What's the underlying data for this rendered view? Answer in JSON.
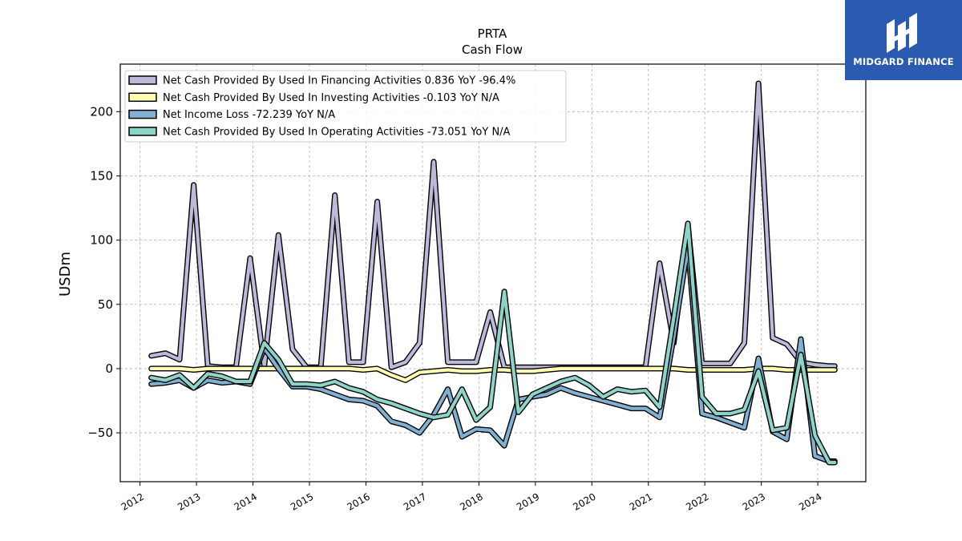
{
  "chart_data": {
    "type": "line",
    "title": "PRTA",
    "subtitle": "Cash Flow",
    "ylabel": "USDm",
    "xlabel": "",
    "xlim": [
      2011.65,
      2024.85
    ],
    "ylim": [
      -88,
      237
    ],
    "yticks": [
      -50,
      0,
      50,
      100,
      150,
      200
    ],
    "xticks": [
      "2012",
      "2013",
      "2014",
      "2015",
      "2016",
      "2017",
      "2018",
      "2019",
      "2020",
      "2021",
      "2022",
      "2023",
      "2024"
    ],
    "grid": true,
    "legend_position": "top-left",
    "x": [
      2012.2,
      2012.45,
      2012.7,
      2012.95,
      2013.2,
      2013.45,
      2013.7,
      2013.95,
      2014.2,
      2014.45,
      2014.7,
      2014.95,
      2015.2,
      2015.45,
      2015.7,
      2015.95,
      2016.2,
      2016.45,
      2016.7,
      2016.95,
      2017.2,
      2017.45,
      2017.7,
      2017.95,
      2018.2,
      2018.45,
      2018.7,
      2018.95,
      2019.2,
      2019.45,
      2019.7,
      2019.95,
      2020.2,
      2020.45,
      2020.7,
      2020.95,
      2021.2,
      2021.45,
      2021.7,
      2021.95,
      2022.2,
      2022.45,
      2022.7,
      2022.95,
      2023.2,
      2023.45,
      2023.7,
      2023.95,
      2024.2,
      2024.3
    ],
    "series": [
      {
        "name": "Net Cash Provided By Used In Financing Activities",
        "legend": "Net Cash Provided By Used In Financing Activities  0.836 YoY -96.4%",
        "color": "#bcbad9",
        "values": [
          10,
          12,
          7,
          143,
          2,
          1,
          1,
          86,
          2,
          104,
          15,
          1,
          1,
          135,
          5,
          5,
          130,
          1,
          5,
          20,
          161,
          5,
          5,
          5,
          44,
          1,
          1,
          1,
          1,
          1,
          1,
          1,
          1,
          1,
          1,
          1,
          82,
          20,
          112,
          4,
          4,
          4,
          20,
          222,
          24,
          19,
          5,
          3,
          2,
          2
        ]
      },
      {
        "name": "Net Cash Provided By Used In Investing Activities",
        "legend": "Net Cash Provided By Used In Investing Activities  -0.103 YoY N/A",
        "color": "#ffffb3",
        "values": [
          0,
          0,
          0,
          -1,
          0,
          0,
          0,
          0,
          0,
          0,
          0,
          0,
          0,
          0,
          0,
          -1,
          0,
          -5,
          -9,
          -3,
          -2,
          -1,
          -2,
          -2,
          -1,
          -1,
          -2,
          -2,
          -1,
          0,
          0,
          0,
          0,
          0,
          0,
          0,
          0,
          0,
          -1,
          -1,
          -1,
          -1,
          -1,
          0,
          0,
          -1,
          -1,
          -1,
          -1,
          -1
        ]
      },
      {
        "name": "Net Income Loss",
        "legend": "Net Income Loss  -72.239 YoY N/A",
        "color": "#80b1d3",
        "values": [
          -12,
          -11,
          -9,
          -15,
          -9,
          -11,
          -10,
          -12,
          16,
          0,
          -14,
          -14,
          -16,
          -20,
          -24,
          -25,
          -29,
          -41,
          -44,
          -50,
          -36,
          -16,
          -53,
          -47,
          -48,
          -60,
          -24,
          -22,
          -20,
          -15,
          -19,
          -22,
          -25,
          -28,
          -31,
          -31,
          -38,
          25,
          95,
          -35,
          -38,
          -42,
          -46,
          8,
          -49,
          -55,
          23,
          -68,
          -72,
          -72
        ]
      },
      {
        "name": "Net Cash Provided By Used In Operating Activities",
        "legend": "Net Cash Provided By Used In Operating Activities  -73.051 YoY N/A",
        "color": "#8dd3c7",
        "values": [
          -7,
          -9,
          -5,
          -15,
          -4,
          -6,
          -10,
          -10,
          20,
          7,
          -12,
          -12,
          -13,
          -10,
          -15,
          -18,
          -24,
          -27,
          -31,
          -35,
          -38,
          -36,
          -16,
          -40,
          -30,
          60,
          -34,
          -20,
          -15,
          -10,
          -7,
          -13,
          -22,
          -16,
          -18,
          -17,
          -30,
          40,
          113,
          -22,
          -35,
          -35,
          -32,
          -2,
          -48,
          -46,
          11,
          -52,
          -73,
          -73
        ]
      }
    ]
  },
  "brand": {
    "name": "MIDGARD FINANCE",
    "icon": "midgard-logo-icon",
    "background": "#2a5bb0"
  }
}
